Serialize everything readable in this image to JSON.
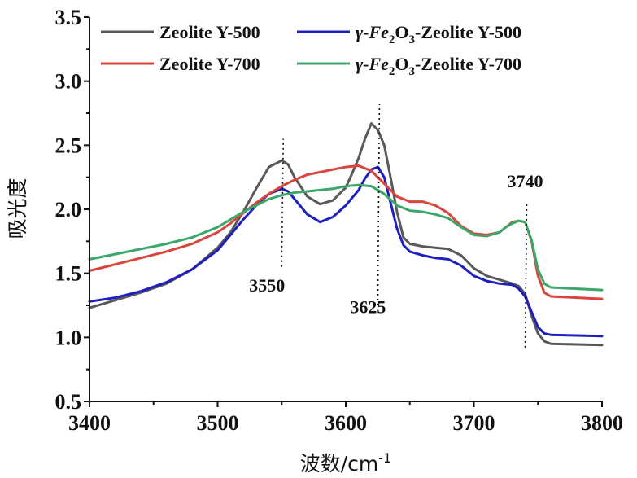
{
  "chart_data": {
    "type": "line",
    "title": "",
    "xlabel": "波数/cm",
    "xlabel_sup": "-1",
    "ylabel": "吸光度",
    "xlim": [
      3400,
      3800
    ],
    "ylim": [
      0.5,
      3.5
    ],
    "xticks": [
      "3400",
      "3500",
      "3600",
      "3700",
      "3800"
    ],
    "yticks": [
      "0.5",
      "1.0",
      "1.5",
      "2.0",
      "2.5",
      "3.0",
      "3.5"
    ],
    "legend_position": "top",
    "series": [
      {
        "name": "Zeolite Y-500",
        "legend_prefix": "",
        "legend_main": "Zeolite Y-500",
        "legend_sub1": "",
        "legend_mid": "",
        "legend_sub2": "",
        "legend_suffix": "",
        "color": "#595959",
        "points": [
          [
            3400,
            1.23
          ],
          [
            3420,
            1.29
          ],
          [
            3440,
            1.35
          ],
          [
            3460,
            1.42
          ],
          [
            3480,
            1.53
          ],
          [
            3500,
            1.7
          ],
          [
            3510,
            1.82
          ],
          [
            3520,
            1.98
          ],
          [
            3530,
            2.16
          ],
          [
            3540,
            2.33
          ],
          [
            3550,
            2.38
          ],
          [
            3555,
            2.35
          ],
          [
            3560,
            2.25
          ],
          [
            3570,
            2.1
          ],
          [
            3580,
            2.04
          ],
          [
            3590,
            2.07
          ],
          [
            3600,
            2.17
          ],
          [
            3605,
            2.28
          ],
          [
            3610,
            2.4
          ],
          [
            3615,
            2.55
          ],
          [
            3620,
            2.67
          ],
          [
            3625,
            2.62
          ],
          [
            3630,
            2.5
          ],
          [
            3635,
            2.25
          ],
          [
            3640,
            1.98
          ],
          [
            3645,
            1.78
          ],
          [
            3650,
            1.73
          ],
          [
            3660,
            1.71
          ],
          [
            3670,
            1.7
          ],
          [
            3680,
            1.69
          ],
          [
            3690,
            1.64
          ],
          [
            3700,
            1.54
          ],
          [
            3710,
            1.48
          ],
          [
            3720,
            1.45
          ],
          [
            3730,
            1.42
          ],
          [
            3735,
            1.4
          ],
          [
            3740,
            1.34
          ],
          [
            3745,
            1.17
          ],
          [
            3750,
            1.03
          ],
          [
            3755,
            0.97
          ],
          [
            3760,
            0.95
          ],
          [
            3800,
            0.94
          ]
        ]
      },
      {
        "name": "γ-Fe2O3-Zeolite Y-500",
        "legend_prefix": "γ-Fe",
        "legend_main": "",
        "legend_sub1": "2",
        "legend_mid": "O",
        "legend_sub2": "3",
        "legend_suffix": "-Zeolite Y-500",
        "color": "#1f1fbf",
        "points": [
          [
            3400,
            1.28
          ],
          [
            3420,
            1.31
          ],
          [
            3440,
            1.36
          ],
          [
            3460,
            1.43
          ],
          [
            3480,
            1.53
          ],
          [
            3500,
            1.68
          ],
          [
            3510,
            1.8
          ],
          [
            3520,
            1.92
          ],
          [
            3530,
            2.03
          ],
          [
            3540,
            2.12
          ],
          [
            3550,
            2.16
          ],
          [
            3555,
            2.14
          ],
          [
            3560,
            2.08
          ],
          [
            3570,
            1.96
          ],
          [
            3580,
            1.9
          ],
          [
            3590,
            1.94
          ],
          [
            3600,
            2.03
          ],
          [
            3610,
            2.15
          ],
          [
            3615,
            2.24
          ],
          [
            3620,
            2.31
          ],
          [
            3625,
            2.33
          ],
          [
            3630,
            2.25
          ],
          [
            3635,
            2.05
          ],
          [
            3640,
            1.85
          ],
          [
            3645,
            1.72
          ],
          [
            3650,
            1.67
          ],
          [
            3660,
            1.64
          ],
          [
            3670,
            1.62
          ],
          [
            3680,
            1.61
          ],
          [
            3690,
            1.56
          ],
          [
            3700,
            1.48
          ],
          [
            3710,
            1.44
          ],
          [
            3720,
            1.42
          ],
          [
            3730,
            1.41
          ],
          [
            3735,
            1.38
          ],
          [
            3740,
            1.32
          ],
          [
            3745,
            1.2
          ],
          [
            3750,
            1.08
          ],
          [
            3755,
            1.03
          ],
          [
            3760,
            1.02
          ],
          [
            3800,
            1.01
          ]
        ]
      },
      {
        "name": "Zeolite Y-700",
        "legend_prefix": "",
        "legend_main": "Zeolite Y-700",
        "legend_sub1": "",
        "legend_mid": "",
        "legend_sub2": "",
        "legend_suffix": "",
        "color": "#d9453c",
        "points": [
          [
            3400,
            1.52
          ],
          [
            3420,
            1.57
          ],
          [
            3440,
            1.62
          ],
          [
            3460,
            1.67
          ],
          [
            3480,
            1.73
          ],
          [
            3500,
            1.82
          ],
          [
            3510,
            1.89
          ],
          [
            3520,
            1.97
          ],
          [
            3530,
            2.05
          ],
          [
            3540,
            2.12
          ],
          [
            3550,
            2.18
          ],
          [
            3560,
            2.23
          ],
          [
            3570,
            2.27
          ],
          [
            3580,
            2.29
          ],
          [
            3590,
            2.31
          ],
          [
            3600,
            2.33
          ],
          [
            3610,
            2.34
          ],
          [
            3620,
            2.3
          ],
          [
            3630,
            2.2
          ],
          [
            3640,
            2.1
          ],
          [
            3650,
            2.06
          ],
          [
            3660,
            2.06
          ],
          [
            3670,
            2.03
          ],
          [
            3680,
            1.97
          ],
          [
            3690,
            1.87
          ],
          [
            3700,
            1.81
          ],
          [
            3710,
            1.8
          ],
          [
            3720,
            1.82
          ],
          [
            3725,
            1.86
          ],
          [
            3730,
            1.9
          ],
          [
            3735,
            1.91
          ],
          [
            3740,
            1.9
          ],
          [
            3745,
            1.75
          ],
          [
            3750,
            1.48
          ],
          [
            3755,
            1.35
          ],
          [
            3760,
            1.32
          ],
          [
            3800,
            1.3
          ]
        ]
      },
      {
        "name": "γ-Fe2O3-Zeolite Y-700",
        "legend_prefix": "γ-Fe",
        "legend_main": "",
        "legend_sub1": "2",
        "legend_mid": "O",
        "legend_sub2": "3",
        "legend_suffix": "-Zeolite Y-700",
        "color": "#3aa86b",
        "points": [
          [
            3400,
            1.61
          ],
          [
            3420,
            1.65
          ],
          [
            3440,
            1.69
          ],
          [
            3460,
            1.73
          ],
          [
            3480,
            1.78
          ],
          [
            3500,
            1.86
          ],
          [
            3510,
            1.92
          ],
          [
            3520,
            1.98
          ],
          [
            3530,
            2.03
          ],
          [
            3540,
            2.08
          ],
          [
            3550,
            2.11
          ],
          [
            3560,
            2.13
          ],
          [
            3570,
            2.14
          ],
          [
            3580,
            2.15
          ],
          [
            3590,
            2.16
          ],
          [
            3600,
            2.18
          ],
          [
            3610,
            2.19
          ],
          [
            3620,
            2.18
          ],
          [
            3630,
            2.12
          ],
          [
            3640,
            2.03
          ],
          [
            3650,
            1.99
          ],
          [
            3660,
            1.98
          ],
          [
            3670,
            1.96
          ],
          [
            3680,
            1.93
          ],
          [
            3690,
            1.86
          ],
          [
            3700,
            1.8
          ],
          [
            3710,
            1.79
          ],
          [
            3720,
            1.82
          ],
          [
            3725,
            1.86
          ],
          [
            3730,
            1.89
          ],
          [
            3735,
            1.91
          ],
          [
            3740,
            1.9
          ],
          [
            3745,
            1.76
          ],
          [
            3750,
            1.53
          ],
          [
            3755,
            1.42
          ],
          [
            3760,
            1.39
          ],
          [
            3800,
            1.37
          ]
        ]
      }
    ],
    "annotations": [
      {
        "label": "3550",
        "x": 3550,
        "line_y": [
          1.55,
          2.55
        ],
        "label_y": 1.55,
        "label_dx": -18
      },
      {
        "label": "3625",
        "x": 3625,
        "line_y": [
          1.25,
          2.82
        ],
        "label_y": 1.38,
        "label_dx": -12
      },
      {
        "label": "3740",
        "x": 3740,
        "line_y": [
          0.92,
          2.05
        ],
        "label_y": 2.12,
        "label_dx": 0
      }
    ]
  }
}
